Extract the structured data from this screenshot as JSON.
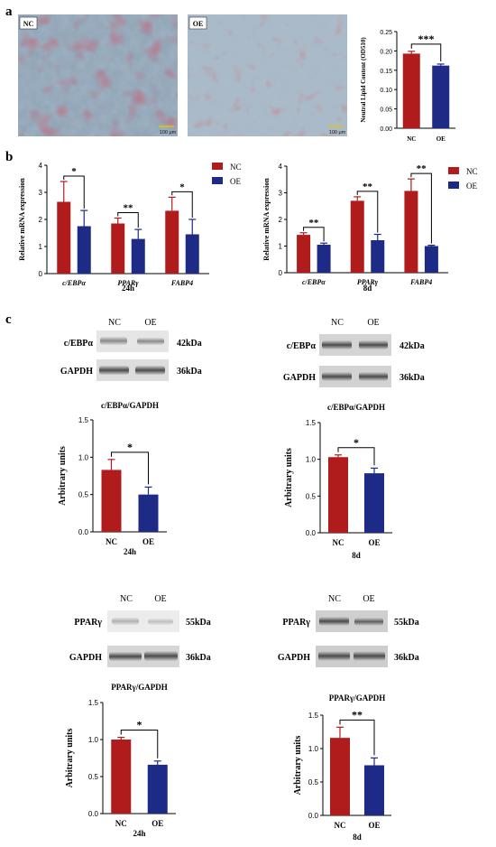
{
  "panels": {
    "a": {
      "label": "a",
      "micrographs": [
        {
          "tag": "NC",
          "scale_bar": "100 μm"
        },
        {
          "tag": "OE",
          "scale_bar": "100 μm"
        }
      ]
    },
    "b": {
      "label": "b"
    },
    "c": {
      "label": "c"
    }
  },
  "colors": {
    "NC": "#b01c1c",
    "OE": "#1d2a86",
    "axis": "#000000"
  },
  "blots": [
    {
      "lanes": [
        "NC",
        "OE"
      ],
      "bands": [
        {
          "name": "c/EBPα",
          "kda": "42kDa"
        },
        {
          "name": "GAPDH",
          "kda": "36kDa"
        }
      ]
    },
    {
      "lanes": [
        "NC",
        "OE"
      ],
      "bands": [
        {
          "name": "c/EBPα",
          "kda": "42kDa"
        },
        {
          "name": "GAPDH",
          "kda": "36kDa"
        }
      ]
    },
    {
      "lanes": [
        "NC",
        "OE"
      ],
      "bands": [
        {
          "name": "PPARγ",
          "kda": "55kDa"
        },
        {
          "name": "GAPDH",
          "kda": "36kDa"
        }
      ]
    },
    {
      "lanes": [
        "NC",
        "OE"
      ],
      "bands": [
        {
          "name": "PPARγ",
          "kda": "55kDa"
        },
        {
          "name": "GAPDH",
          "kda": "36kDa"
        }
      ]
    }
  ],
  "chart_data": [
    {
      "id": "lipid",
      "type": "bar",
      "title": "",
      "subtitle": "",
      "ylabel": "Neutral Lipid Content (OD510)",
      "categories": [
        "NC",
        "OE"
      ],
      "values": [
        0.193,
        0.162
      ],
      "errors": [
        0.006,
        0.004
      ],
      "ylim": [
        0,
        0.25
      ],
      "yticks": [
        0.0,
        0.05,
        0.1,
        0.15,
        0.2,
        0.25
      ],
      "tick_decimals": 2,
      "significance": [
        {
          "between": [
            0,
            1
          ],
          "label": "***"
        }
      ]
    },
    {
      "id": "mrna24",
      "type": "bar",
      "title": "",
      "subtitle": "24h",
      "ylabel": "Relative  mRNA expression",
      "categories": [
        "c/EBPα",
        "PPARγ",
        "FABP4"
      ],
      "series": [
        {
          "name": "NC",
          "values": [
            2.65,
            1.85,
            2.32
          ],
          "errors": [
            0.75,
            0.2,
            0.5
          ]
        },
        {
          "name": "OE",
          "values": [
            1.75,
            1.28,
            1.45
          ],
          "errors": [
            0.58,
            0.35,
            0.55
          ]
        }
      ],
      "ylim": [
        0,
        4
      ],
      "yticks": [
        0,
        1,
        2,
        3,
        4
      ],
      "tick_decimals": 0,
      "legend": "right",
      "significance": [
        {
          "group": 0,
          "label": "*"
        },
        {
          "group": 1,
          "label": "**"
        },
        {
          "group": 2,
          "label": "*"
        }
      ]
    },
    {
      "id": "mrna8",
      "type": "bar",
      "title": "",
      "subtitle": "8d",
      "ylabel": "Relative  mRNA expression",
      "categories": [
        "c/EBPα",
        "PPARγ",
        "FABP4"
      ],
      "series": [
        {
          "name": "NC",
          "values": [
            1.42,
            2.7,
            3.07
          ],
          "errors": [
            0.08,
            0.15,
            0.45
          ]
        },
        {
          "name": "OE",
          "values": [
            1.05,
            1.22,
            1.0
          ],
          "errors": [
            0.06,
            0.22,
            0.03
          ]
        }
      ],
      "ylim": [
        0,
        4
      ],
      "yticks": [
        0,
        1,
        2,
        3,
        4
      ],
      "tick_decimals": 0,
      "legend": "right",
      "significance": [
        {
          "group": 0,
          "label": "**"
        },
        {
          "group": 1,
          "label": "**"
        },
        {
          "group": 2,
          "label": "**"
        }
      ]
    },
    {
      "id": "cebpa24",
      "type": "bar",
      "title": "c/EBPα/GAPDH",
      "subtitle": "24h",
      "ylabel": "Arbitrary units",
      "categories": [
        "NC",
        "OE"
      ],
      "values": [
        0.83,
        0.5
      ],
      "errors": [
        0.14,
        0.1
      ],
      "ylim": [
        0,
        1.5
      ],
      "yticks": [
        0.0,
        0.5,
        1.0,
        1.5
      ],
      "tick_decimals": 1,
      "significance": [
        {
          "between": [
            0,
            1
          ],
          "label": "*"
        }
      ]
    },
    {
      "id": "cebpa8",
      "type": "bar",
      "title": "c/EBPα/GAPDH",
      "subtitle": "8d",
      "ylabel": "Arbitrary units",
      "categories": [
        "NC",
        "OE"
      ],
      "values": [
        1.03,
        0.81
      ],
      "errors": [
        0.03,
        0.07
      ],
      "ylim": [
        0,
        1.5
      ],
      "yticks": [
        0.0,
        0.5,
        1.0,
        1.5
      ],
      "tick_decimals": 1,
      "significance": [
        {
          "between": [
            0,
            1
          ],
          "label": "*"
        }
      ]
    },
    {
      "id": "pparg24",
      "type": "bar",
      "title": "PPARγ/GAPDH",
      "subtitle": "24h",
      "ylabel": "Arbitrary units",
      "categories": [
        "NC",
        "OE"
      ],
      "values": [
        1.0,
        0.66
      ],
      "errors": [
        0.03,
        0.05
      ],
      "ylim": [
        0,
        1.5
      ],
      "yticks": [
        0.0,
        0.5,
        1.0,
        1.5
      ],
      "tick_decimals": 1,
      "significance": [
        {
          "between": [
            0,
            1
          ],
          "label": "*"
        }
      ]
    },
    {
      "id": "pparg8",
      "type": "bar",
      "title": "PPARγ/GAPDH",
      "subtitle": "8d",
      "ylabel": "Arbitrary units",
      "categories": [
        "NC",
        "OE"
      ],
      "values": [
        1.16,
        0.75
      ],
      "errors": [
        0.16,
        0.11
      ],
      "ylim": [
        0,
        1.5
      ],
      "yticks": [
        0.0,
        0.5,
        1.0,
        1.5
      ],
      "tick_decimals": 1,
      "significance": [
        {
          "between": [
            0,
            1
          ],
          "label": "**"
        }
      ]
    }
  ]
}
